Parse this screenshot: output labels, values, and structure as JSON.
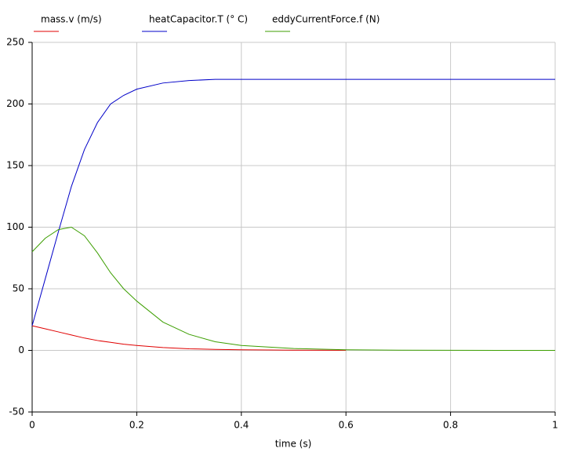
{
  "chart_data": {
    "type": "line",
    "x_label": "time (s)",
    "x": [
      0,
      0.025,
      0.05,
      0.075,
      0.1,
      0.125,
      0.15,
      0.175,
      0.2,
      0.25,
      0.3,
      0.35,
      0.4,
      0.5,
      0.6,
      0.7,
      0.8,
      0.9,
      1
    ],
    "series": [
      {
        "name": "mass.v (m/s)",
        "color": "#e00000",
        "values": [
          20,
          17.5,
          15,
          12.5,
          10,
          8,
          6.5,
          5,
          4,
          2.3,
          1.3,
          0.8,
          0.5,
          0.2,
          0.1,
          null,
          null,
          null,
          null
        ]
      },
      {
        "name": "heatCapacitor.T (° C)",
        "color": "#0000c8",
        "values": [
          20,
          58,
          96,
          133,
          163,
          185,
          200,
          207,
          212,
          217,
          219,
          220,
          220,
          220,
          220,
          220,
          220,
          220,
          220
        ]
      },
      {
        "name": "eddyCurrentForce.f (N)",
        "color": "#3c9e00",
        "values": [
          80,
          91,
          98,
          100,
          93,
          79,
          63,
          50,
          40,
          23,
          13,
          7,
          4,
          1.5,
          0.5,
          0.2,
          0.1,
          0,
          0
        ]
      }
    ],
    "xlim": [
      0,
      1
    ],
    "xticks": [
      0,
      0.2,
      0.4,
      0.6,
      0.8,
      1
    ],
    "ylim": [
      -50,
      250
    ],
    "yticks": [
      -50,
      0,
      50,
      100,
      150,
      200,
      250
    ],
    "grid": true,
    "legend": "top"
  }
}
